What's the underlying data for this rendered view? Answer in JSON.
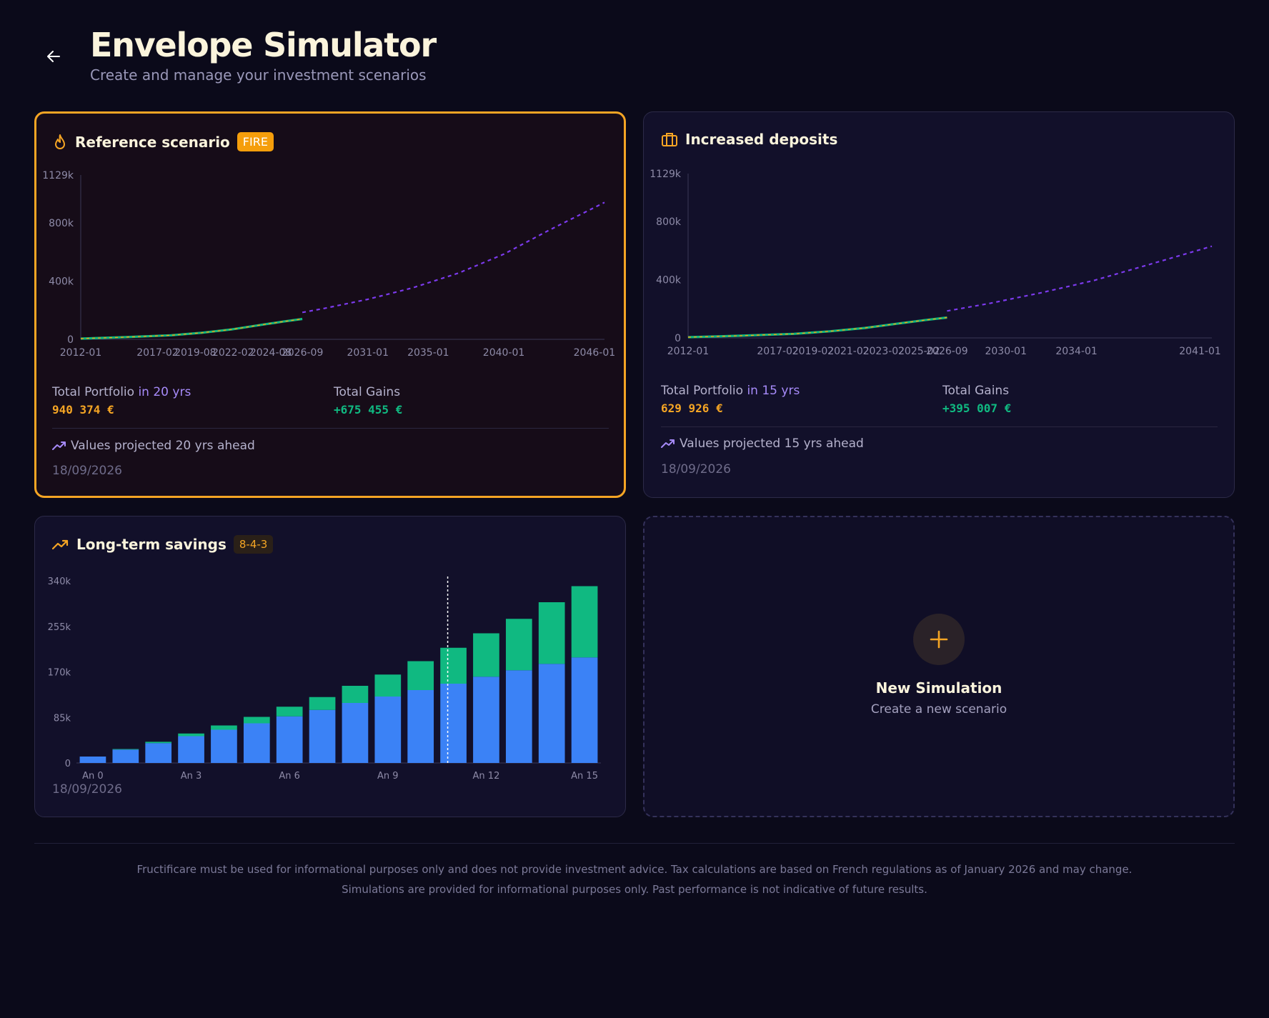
{
  "header": {
    "title": "Envelope Simulator",
    "subtitle": "Create and manage your investment scenarios"
  },
  "cards": [
    {
      "title": "Reference scenario",
      "badge": "FIRE",
      "icon": "flame-icon",
      "portfolio_label": "Total Portfolio",
      "portfolio_horizon": "in 20 yrs",
      "portfolio_value": "940 374 €",
      "gains_label": "Total Gains",
      "gains_value": "+675 455 €",
      "projection_note": "Values projected 20 yrs ahead",
      "date": "18/09/2026"
    },
    {
      "title": "Increased deposits",
      "icon": "briefcase-icon",
      "portfolio_label": "Total Portfolio",
      "portfolio_horizon": "in 15 yrs",
      "portfolio_value": "629 926 €",
      "gains_label": "Total Gains",
      "gains_value": "+395 007 €",
      "projection_note": "Values projected 15 yrs ahead",
      "date": "18/09/2026"
    },
    {
      "title": "Long-term savings",
      "badge": "8-4-3",
      "icon": "trending-up-icon",
      "date": "18/09/2026"
    }
  ],
  "new_simulation": {
    "icon": "plus-icon",
    "title": "New Simulation",
    "subtitle": "Create a new scenario"
  },
  "footer": {
    "line1": "Fructificare must be used for informational purposes only and does not provide investment advice. Tax calculations are based on French regulations as of January 2026 and may change.",
    "line2": "Simulations are provided for informational purposes only. Past performance is not indicative of future results."
  },
  "colors": {
    "accent": "#f5a524",
    "projection": "#7c3aed",
    "history_primary": "#10b981",
    "history_secondary": "#f59e0b",
    "deposits": "#3b82f6",
    "gains": "#10b981"
  },
  "chart_data": [
    {
      "type": "line",
      "ytick_labels": [
        "0",
        "400k",
        "800k",
        "1129k"
      ],
      "yticks": [
        0,
        400000,
        800000,
        1129000
      ],
      "ylim": [
        0,
        1129000
      ],
      "x_labels": [
        "2012-01",
        "2017-02",
        "2019-08",
        "2022-02",
        "2024-08",
        "2026-09",
        "2031-01",
        "2035-01",
        "2040-01",
        "2046-01"
      ],
      "xlim": [
        "2012-01",
        "2046-09"
      ],
      "series": [
        {
          "style": "solid",
          "points": [
            [
              "2012-01",
              5000
            ],
            [
              "2015-01",
              15000
            ],
            [
              "2018-01",
              28000
            ],
            [
              "2020-01",
              45000
            ],
            [
              "2022-01",
              68000
            ],
            [
              "2024-01",
              100000
            ],
            [
              "2025-06",
              122000
            ],
            [
              "2026-09",
              140000
            ]
          ]
        },
        {
          "style": "dashed",
          "points": [
            [
              "2026-09",
              185000
            ],
            [
              "2028-01",
              210000
            ],
            [
              "2031-01",
              275000
            ],
            [
              "2034-01",
              355000
            ],
            [
              "2037-01",
              455000
            ],
            [
              "2040-01",
              585000
            ],
            [
              "2043-01",
              750000
            ],
            [
              "2046-09",
              940374
            ]
          ]
        }
      ]
    },
    {
      "type": "line",
      "ytick_labels": [
        "0",
        "400k",
        "800k",
        "1129k"
      ],
      "yticks": [
        0,
        400000,
        800000,
        1129000
      ],
      "ylim": [
        0,
        1129000
      ],
      "x_labels": [
        "2012-01",
        "2017-02",
        "2019-02",
        "2021-02",
        "2023-02",
        "2025-02",
        "2026-09",
        "2030-01",
        "2034-01",
        "2041-01"
      ],
      "xlim": [
        "2012-01",
        "2041-09"
      ],
      "series": [
        {
          "style": "solid",
          "points": [
            [
              "2012-01",
              5000
            ],
            [
              "2015-01",
              15000
            ],
            [
              "2018-01",
              28000
            ],
            [
              "2020-01",
              45000
            ],
            [
              "2022-01",
              68000
            ],
            [
              "2024-01",
              100000
            ],
            [
              "2025-06",
              122000
            ],
            [
              "2026-09",
              140000
            ]
          ]
        },
        {
          "style": "dashed",
          "points": [
            [
              "2026-09",
              185000
            ],
            [
              "2029-01",
              235000
            ],
            [
              "2032-01",
              310000
            ],
            [
              "2035-01",
              395000
            ],
            [
              "2038-01",
              500000
            ],
            [
              "2041-09",
              629926
            ]
          ]
        }
      ]
    },
    {
      "type": "bar",
      "stacked": true,
      "ytick_labels": [
        "0",
        "85k",
        "170k",
        "255k",
        "340k"
      ],
      "yticks": [
        0,
        85000,
        170000,
        255000,
        340000
      ],
      "ylim": [
        0,
        340000
      ],
      "categories": [
        "An 0",
        "An 1",
        "An 2",
        "An 3",
        "An 4",
        "An 5",
        "An 6",
        "An 7",
        "An 8",
        "An 9",
        "An 10",
        "An 11",
        "An 12",
        "An 13",
        "An 14",
        "An 15"
      ],
      "x_labels": [
        "An 0",
        "An 3",
        "An 6",
        "An 9",
        "An 12",
        "An 15"
      ],
      "marker_category": "An 11",
      "series": [
        {
          "values": [
            12000,
            25000,
            37000,
            50000,
            62000,
            74000,
            87000,
            99000,
            112000,
            124000,
            136000,
            148000,
            161000,
            173000,
            185000,
            197000
          ]
        },
        {
          "values": [
            0,
            1000,
            2500,
            5000,
            8000,
            12000,
            18000,
            24000,
            32000,
            41000,
            54000,
            67000,
            81000,
            96000,
            115000,
            133000
          ]
        }
      ]
    }
  ]
}
